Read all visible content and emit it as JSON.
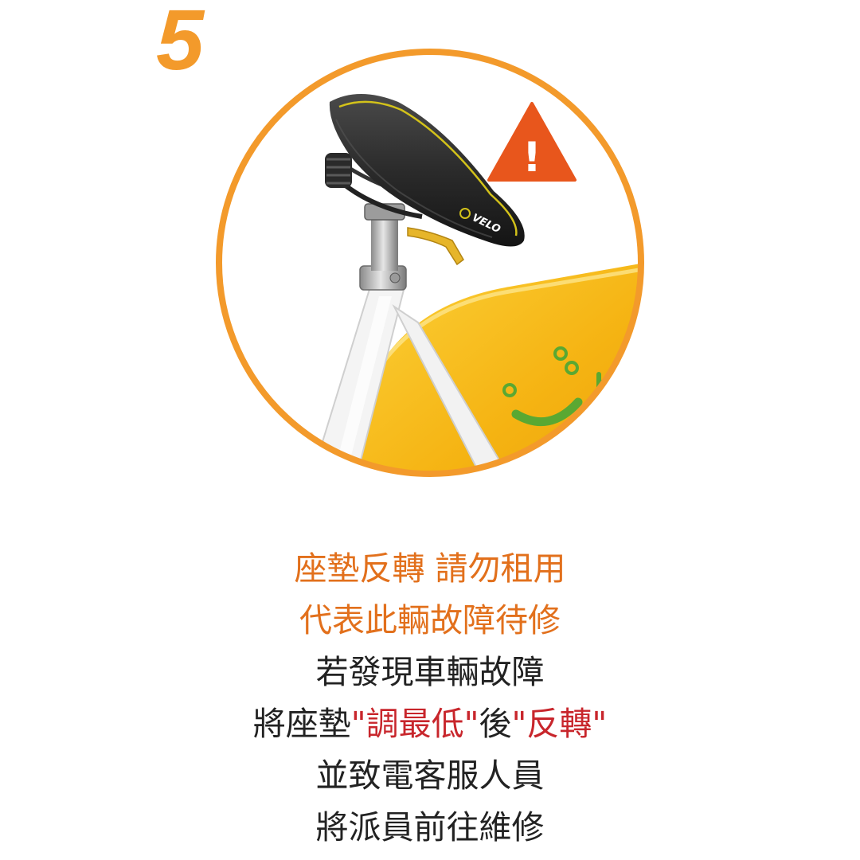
{
  "step": {
    "number": "5"
  },
  "illustration": {
    "brand_label": "VELO",
    "warning_symbol": "!",
    "icon": "warning-triangle-icon",
    "colors": {
      "ring": "#f39a2b",
      "warning": "#e8561c",
      "fender": "#f7b615",
      "smiley": "#5aa832",
      "saddle": "#2d2d2d",
      "frame": "#f4f4f4"
    }
  },
  "instructions": {
    "line1": "座墊反轉 請勿租用",
    "line2": "代表此輛故障待修",
    "line3": "若發現車輛故障",
    "line4": {
      "prefix": "將座墊",
      "quote1": "\"",
      "action1": "調最低",
      "quote2": "\"",
      "middle": "後",
      "quote3": "\"",
      "action2": "反轉",
      "quote4": "\""
    },
    "line5": "並致電客服人員",
    "line6": "將派員前往維修"
  }
}
